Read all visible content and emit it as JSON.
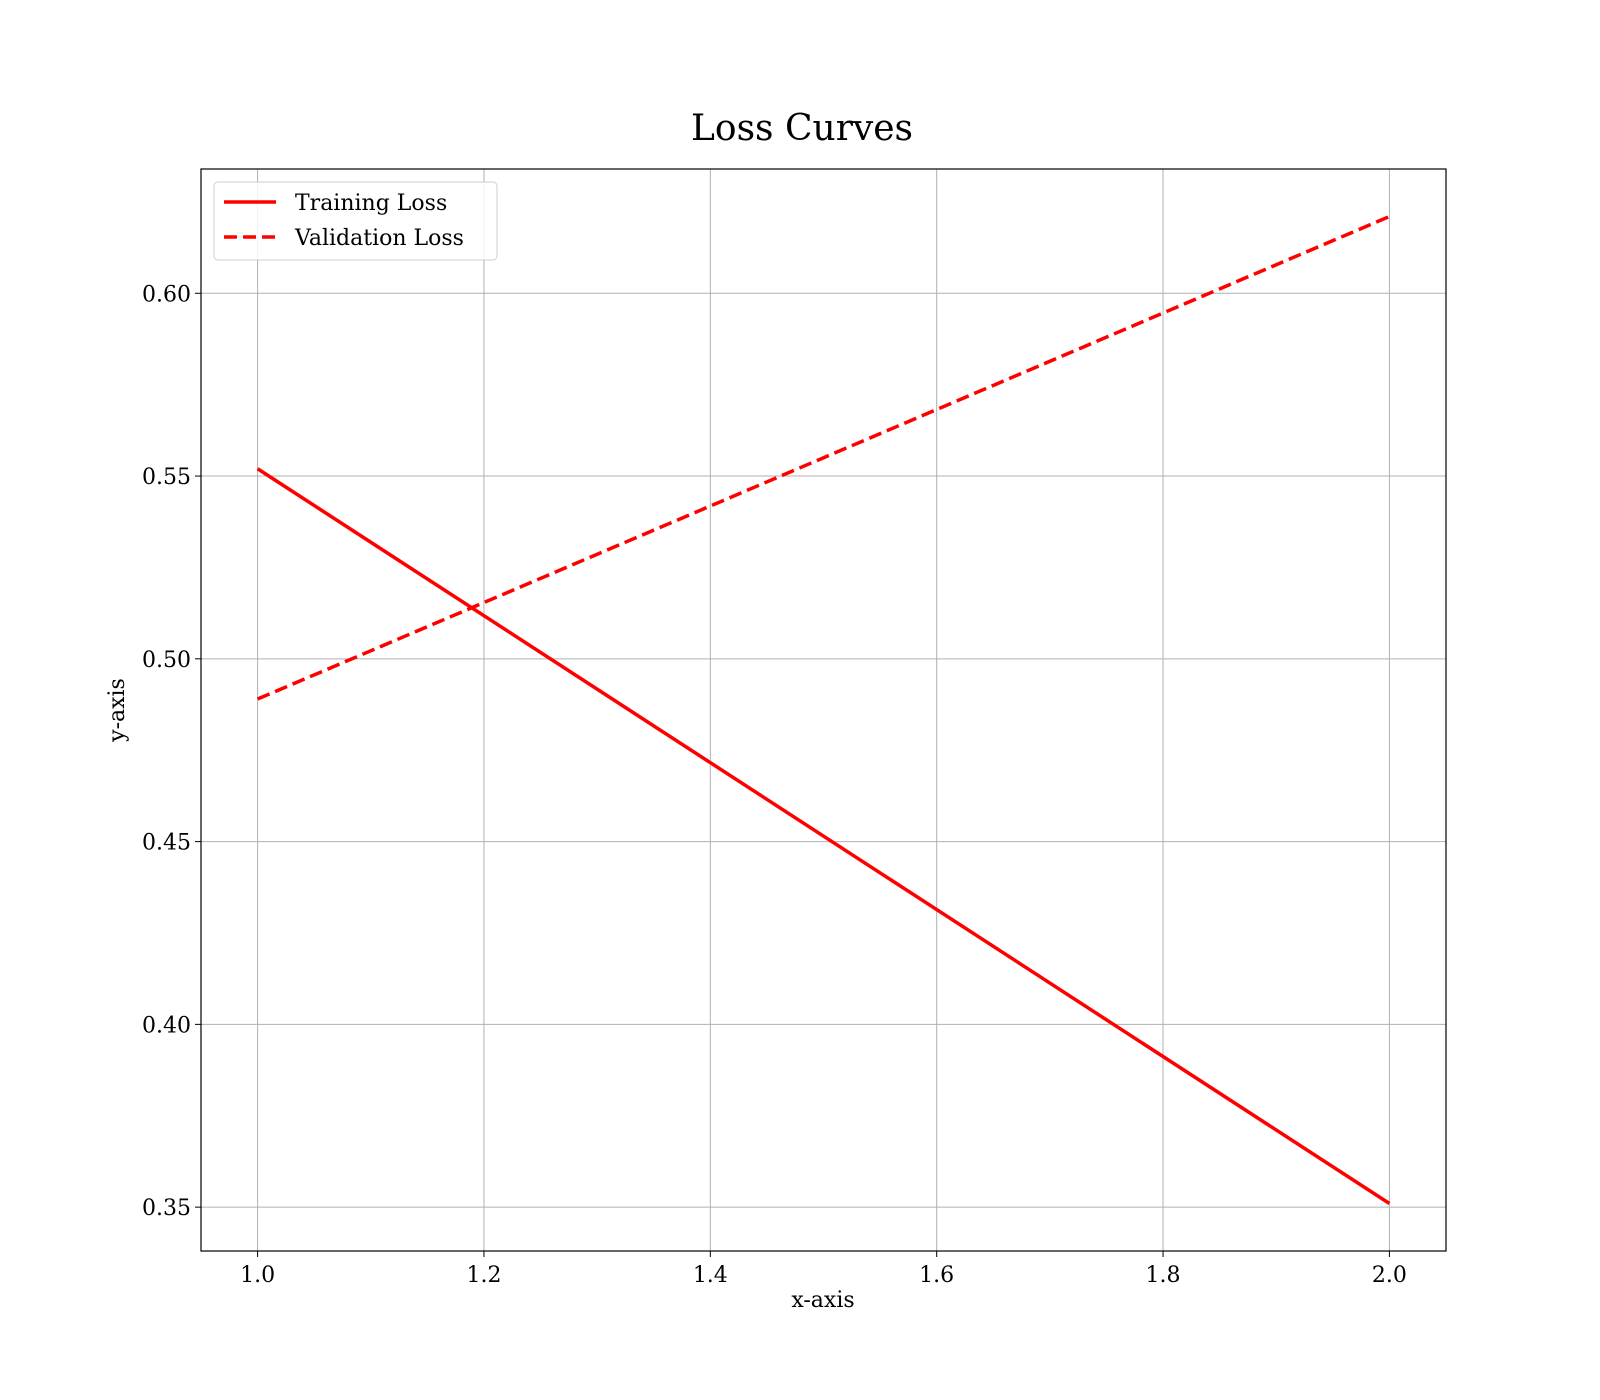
{
  "chart_data": {
    "type": "line",
    "title": "Loss Curves",
    "xlabel": "x-axis",
    "ylabel": "y-axis",
    "xlim": [
      0.95,
      2.05
    ],
    "ylim": [
      0.338,
      0.634
    ],
    "x_ticks": [
      1.0,
      1.2,
      1.4,
      1.6,
      1.8,
      2.0
    ],
    "x_tick_labels": [
      "1.0",
      "1.2",
      "1.4",
      "1.6",
      "1.8",
      "2.0"
    ],
    "y_ticks": [
      0.35,
      0.4,
      0.45,
      0.5,
      0.55,
      0.6
    ],
    "y_tick_labels": [
      "0.35",
      "0.40",
      "0.45",
      "0.50",
      "0.55",
      "0.60"
    ],
    "grid": true,
    "legend_position": "top-left",
    "series": [
      {
        "name": "Training Loss",
        "style": "solid",
        "color": "#ff0000",
        "x": [
          1.0,
          2.0
        ],
        "y": [
          0.552,
          0.351
        ]
      },
      {
        "name": "Validation Loss",
        "style": "dashed",
        "color": "#ff0000",
        "x": [
          1.0,
          2.0
        ],
        "y": [
          0.489,
          0.621
        ]
      }
    ]
  }
}
